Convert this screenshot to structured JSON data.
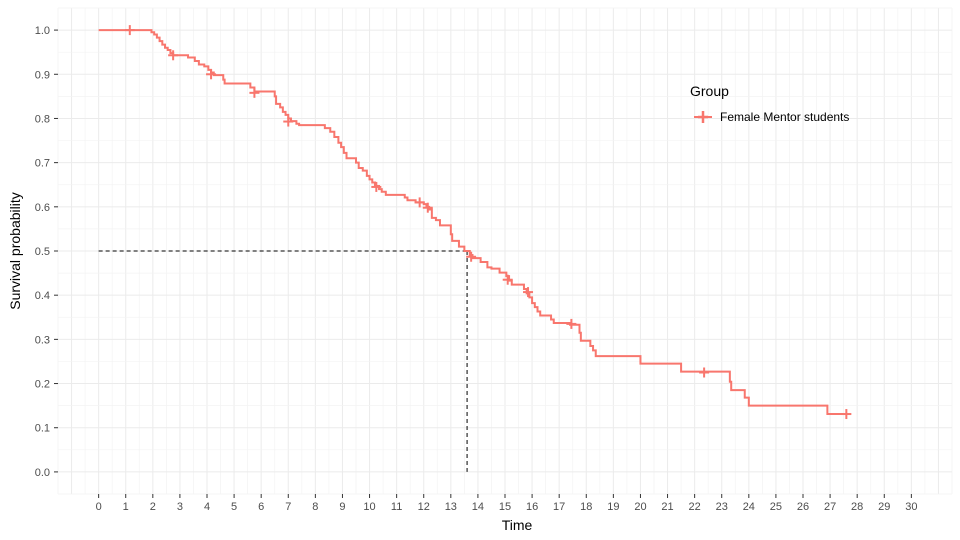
{
  "chart_data": {
    "type": "line",
    "subtype": "kaplan-meier step",
    "xlabel": "Time",
    "ylabel": "Survival probability",
    "xlim": [
      -1.5,
      31.5
    ],
    "ylim": [
      -0.05,
      1.05
    ],
    "x_ticks": [
      0,
      1,
      2,
      3,
      4,
      5,
      6,
      7,
      8,
      9,
      10,
      11,
      12,
      13,
      14,
      15,
      16,
      17,
      18,
      19,
      20,
      21,
      22,
      23,
      24,
      25,
      26,
      27,
      28,
      29,
      30
    ],
    "x_tick_labels": [
      "0",
      "1",
      "2",
      "3",
      "4",
      "5",
      "6",
      "7",
      "8",
      "9",
      "10",
      "11",
      "12",
      "13",
      "14",
      "15",
      "16",
      "17",
      "18",
      "19",
      "20",
      "21",
      "22",
      "23",
      "24",
      "25",
      "26",
      "27",
      "28",
      "29",
      "30"
    ],
    "y_ticks": [
      0,
      0.1,
      0.2,
      0.3,
      0.4,
      0.5,
      0.6,
      0.7,
      0.8,
      0.9,
      1.0
    ],
    "y_tick_labels": [
      "0.0",
      "0.1",
      "0.2",
      "0.3",
      "0.4",
      "0.5",
      "0.6",
      "0.7",
      "0.8",
      "0.9",
      "1.0"
    ],
    "grid": true,
    "legend": {
      "title": "Group",
      "position": "right",
      "entries": [
        "Female Mentor students"
      ]
    },
    "series": [
      {
        "name": "Female Mentor students",
        "color": "#F8766D",
        "steps": [
          [
            0,
            1.0
          ],
          [
            1.95,
            0.995
          ],
          [
            2.05,
            0.99
          ],
          [
            2.15,
            0.983
          ],
          [
            2.25,
            0.975
          ],
          [
            2.35,
            0.967
          ],
          [
            2.45,
            0.96
          ],
          [
            2.55,
            0.955
          ],
          [
            2.65,
            0.948
          ],
          [
            2.75,
            0.943
          ],
          [
            3.3,
            0.938
          ],
          [
            3.55,
            0.93
          ],
          [
            3.7,
            0.922
          ],
          [
            3.9,
            0.918
          ],
          [
            4.05,
            0.91
          ],
          [
            4.15,
            0.904
          ],
          [
            4.25,
            0.898
          ],
          [
            4.6,
            0.888
          ],
          [
            4.65,
            0.879
          ],
          [
            5.6,
            0.87
          ],
          [
            5.75,
            0.861
          ],
          [
            6.5,
            0.85
          ],
          [
            6.55,
            0.833
          ],
          [
            6.7,
            0.825
          ],
          [
            6.8,
            0.815
          ],
          [
            6.9,
            0.808
          ],
          [
            7.0,
            0.8
          ],
          [
            7.1,
            0.794
          ],
          [
            7.3,
            0.788
          ],
          [
            7.4,
            0.785
          ],
          [
            8.35,
            0.778
          ],
          [
            8.55,
            0.77
          ],
          [
            8.7,
            0.758
          ],
          [
            8.85,
            0.745
          ],
          [
            8.95,
            0.735
          ],
          [
            9.05,
            0.722
          ],
          [
            9.15,
            0.71
          ],
          [
            9.5,
            0.7
          ],
          [
            9.6,
            0.688
          ],
          [
            9.75,
            0.682
          ],
          [
            9.9,
            0.67
          ],
          [
            10.0,
            0.662
          ],
          [
            10.1,
            0.655
          ],
          [
            10.2,
            0.647
          ],
          [
            10.35,
            0.64
          ],
          [
            10.45,
            0.634
          ],
          [
            10.6,
            0.627
          ],
          [
            11.3,
            0.621
          ],
          [
            11.4,
            0.615
          ],
          [
            11.7,
            0.61
          ],
          [
            12.0,
            0.606
          ],
          [
            12.1,
            0.6
          ],
          [
            12.2,
            0.594
          ],
          [
            12.3,
            0.575
          ],
          [
            12.45,
            0.57
          ],
          [
            12.6,
            0.558
          ],
          [
            13.0,
            0.538
          ],
          [
            13.05,
            0.523
          ],
          [
            13.3,
            0.51
          ],
          [
            13.5,
            0.5
          ],
          [
            13.7,
            0.491
          ],
          [
            13.8,
            0.484
          ],
          [
            14.1,
            0.475
          ],
          [
            14.35,
            0.463
          ],
          [
            14.5,
            0.46
          ],
          [
            14.8,
            0.451
          ],
          [
            15.05,
            0.443
          ],
          [
            15.15,
            0.433
          ],
          [
            15.25,
            0.424
          ],
          [
            15.7,
            0.414
          ],
          [
            15.8,
            0.404
          ],
          [
            15.9,
            0.395
          ],
          [
            16.0,
            0.382
          ],
          [
            16.1,
            0.373
          ],
          [
            16.2,
            0.363
          ],
          [
            16.3,
            0.354
          ],
          [
            16.7,
            0.345
          ],
          [
            16.8,
            0.337
          ],
          [
            17.4,
            0.333
          ],
          [
            17.75,
            0.315
          ],
          [
            17.8,
            0.297
          ],
          [
            18.15,
            0.285
          ],
          [
            18.25,
            0.275
          ],
          [
            18.35,
            0.262
          ],
          [
            20.0,
            0.245
          ],
          [
            21.5,
            0.227
          ],
          [
            23.3,
            0.204
          ],
          [
            23.35,
            0.185
          ],
          [
            23.85,
            0.168
          ],
          [
            24.0,
            0.15
          ],
          [
            26.9,
            0.131
          ],
          [
            27.5,
            0.131
          ]
        ],
        "censor_marks": [
          [
            1.15,
            1.0
          ],
          [
            2.75,
            0.943
          ],
          [
            4.15,
            0.9
          ],
          [
            5.75,
            0.858
          ],
          [
            7.0,
            0.793
          ],
          [
            10.25,
            0.645
          ],
          [
            11.85,
            0.61
          ],
          [
            12.15,
            0.598
          ],
          [
            13.75,
            0.487
          ],
          [
            15.1,
            0.435
          ],
          [
            15.85,
            0.407
          ],
          [
            17.45,
            0.335
          ],
          [
            22.35,
            0.225
          ],
          [
            27.6,
            0.131
          ]
        ]
      }
    ],
    "annotations": {
      "median": {
        "survival": 0.5,
        "time": 13.6,
        "style": "dashed"
      }
    }
  }
}
